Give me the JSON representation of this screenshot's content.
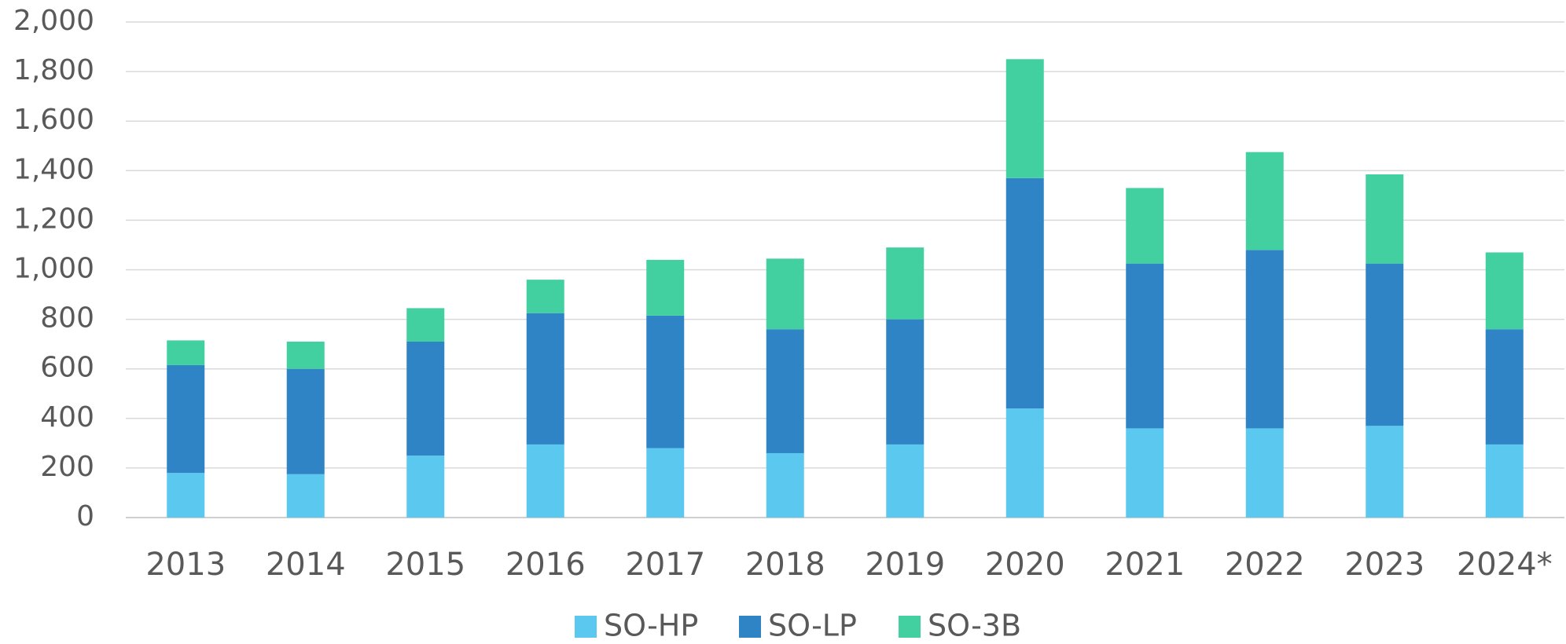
{
  "chart_data": {
    "type": "stacked_bar",
    "categories": [
      "2013",
      "2014",
      "2015",
      "2016",
      "2017",
      "2018",
      "2019",
      "2020",
      "2021",
      "2022",
      "2023",
      "2024*"
    ],
    "series": [
      {
        "name": "SO-HP",
        "color": "#5bc9ef",
        "values": [
          180,
          175,
          250,
          295,
          280,
          260,
          295,
          440,
          360,
          360,
          370,
          295
        ]
      },
      {
        "name": "SO-LP",
        "color": "#2e84c4",
        "values": [
          435,
          425,
          460,
          530,
          535,
          500,
          505,
          930,
          665,
          720,
          655,
          465
        ]
      },
      {
        "name": "SO-3B",
        "color": "#42d0a0",
        "values": [
          100,
          110,
          135,
          135,
          225,
          285,
          290,
          480,
          305,
          395,
          360,
          310
        ]
      }
    ],
    "ylim": [
      0,
      2000
    ],
    "yticks": [
      0,
      200,
      400,
      600,
      800,
      {
        "value": 1000,
        "label": "1,000"
      },
      {
        "value": 1200,
        "label": "1,200"
      },
      {
        "value": 1400,
        "label": "1,400"
      },
      {
        "value": 1600,
        "label": "1,600"
      },
      {
        "value": 1800,
        "label": "1,800"
      },
      {
        "value": 2000,
        "label": "2,000"
      }
    ],
    "grid": true,
    "legend": "bottom"
  }
}
